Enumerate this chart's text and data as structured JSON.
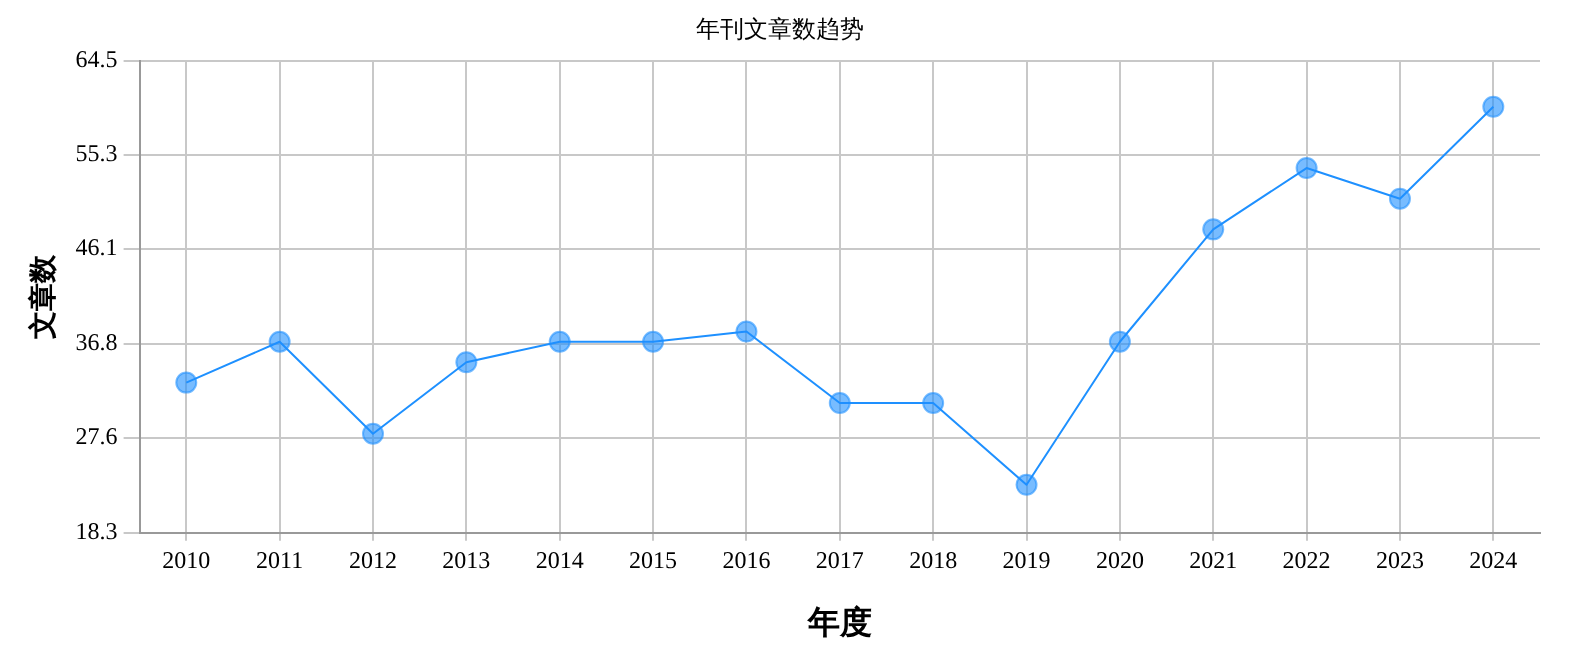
{
  "chart_data": {
    "type": "line",
    "title": "年刊文章数趋势",
    "xlabel": "年度",
    "ylabel": "文章数",
    "categories": [
      "2010",
      "2011",
      "2012",
      "2013",
      "2014",
      "2015",
      "2016",
      "2017",
      "2018",
      "2019",
      "2020",
      "2021",
      "2022",
      "2023",
      "2024"
    ],
    "series": [
      {
        "color": "#1e90ff",
        "values": [
          33,
          37,
          28,
          35,
          37,
          37,
          38,
          31,
          31,
          23,
          37,
          48,
          54,
          51,
          60
        ]
      }
    ],
    "ylim": [
      18.3,
      64.5
    ],
    "yticks": [
      18.3,
      27.6,
      36.8,
      46.1,
      55.3,
      64.5
    ],
    "grid": true,
    "legend": false,
    "marker": "circle",
    "line_style": "solid"
  }
}
